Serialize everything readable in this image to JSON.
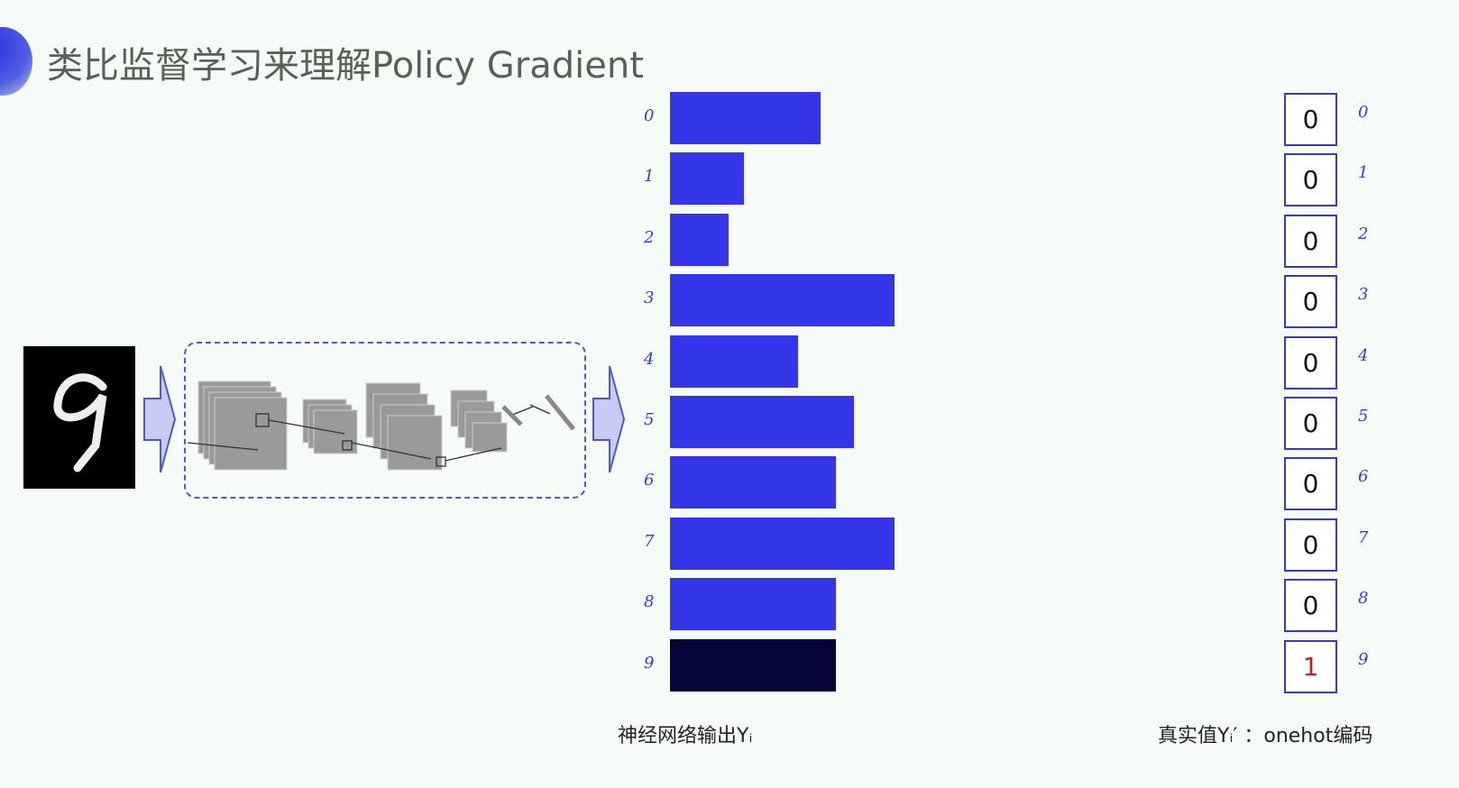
{
  "title": "类比监督学习来理解Policy Gradient",
  "input_digit": "9",
  "classes": [
    "0",
    "1",
    "2",
    "3",
    "4",
    "5",
    "6",
    "7",
    "8",
    "9"
  ],
  "output_scores_relative": [
    0.67,
    0.33,
    0.26,
    1.0,
    0.57,
    0.82,
    0.74,
    1.0,
    0.74,
    0.74
  ],
  "selected_class_index": 9,
  "onehot": [
    "0",
    "0",
    "0",
    "0",
    "0",
    "0",
    "0",
    "0",
    "0",
    "1"
  ],
  "captions": {
    "output": "神经网络输出Yᵢ",
    "truth": "真实值Yᵢ′ ：onehot编码"
  },
  "colors": {
    "bar": "#3535ea",
    "selected_bar": "#05053a",
    "hot": "#c82020",
    "accent": "#3240c8"
  }
}
